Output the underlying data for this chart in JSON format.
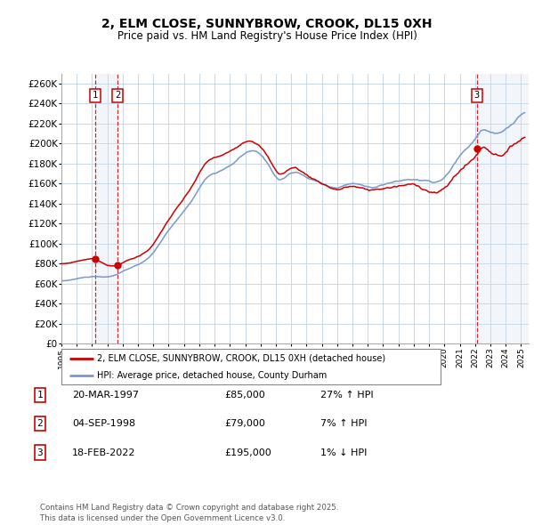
{
  "title": "2, ELM CLOSE, SUNNYBROW, CROOK, DL15 0XH",
  "subtitle": "Price paid vs. HM Land Registry's House Price Index (HPI)",
  "red_label": "2, ELM CLOSE, SUNNYBROW, CROOK, DL15 0XH (detached house)",
  "blue_label": "HPI: Average price, detached house, County Durham",
  "transactions": [
    {
      "num": 1,
      "date_str": "20-MAR-1997",
      "price": 85000,
      "pct": "27%",
      "dir": "↑"
    },
    {
      "num": 2,
      "date_str": "04-SEP-1998",
      "price": 79000,
      "pct": "7%",
      "dir": "↑"
    },
    {
      "num": 3,
      "date_str": "18-FEB-2022",
      "price": 195000,
      "pct": "1%",
      "dir": "↓"
    }
  ],
  "transaction_dates_decimal": [
    1997.22,
    1998.67,
    2022.12
  ],
  "transaction_prices": [
    85000,
    79000,
    195000
  ],
  "ylim": [
    0,
    270000
  ],
  "yticks": [
    0,
    20000,
    40000,
    60000,
    80000,
    100000,
    120000,
    140000,
    160000,
    180000,
    200000,
    220000,
    240000,
    260000
  ],
  "footer": "Contains HM Land Registry data © Crown copyright and database right 2025.\nThis data is licensed under the Open Government Licence v3.0.",
  "bg_color": "#ffffff",
  "grid_color": "#c8d8e8",
  "red_color": "#cc0000",
  "blue_color": "#7799cc",
  "vline_color": "#cc0000",
  "shade_color": "#ccddf0"
}
